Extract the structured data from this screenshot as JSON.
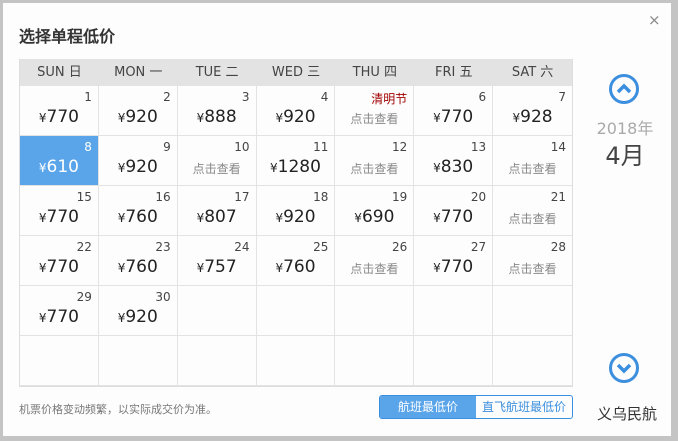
{
  "title": "选择单程低价",
  "close_icon": "×",
  "weekdays": [
    "SUN 日",
    "MON 一",
    "TUE 二",
    "WED 三",
    "THU 四",
    "FRI 五",
    "SAT 六"
  ],
  "currency": "¥",
  "view_label": "点击查看",
  "selected_day": 8,
  "days": [
    {
      "day": "1",
      "price": "770"
    },
    {
      "day": "2",
      "price": "920"
    },
    {
      "day": "3",
      "price": "888"
    },
    {
      "day": "4",
      "price": "920"
    },
    {
      "day": "清明节",
      "holiday": true,
      "price": null
    },
    {
      "day": "6",
      "price": "770"
    },
    {
      "day": "7",
      "price": "928"
    },
    {
      "day": "8",
      "price": "610"
    },
    {
      "day": "9",
      "price": "920"
    },
    {
      "day": "10",
      "price": null
    },
    {
      "day": "11",
      "price": "1280"
    },
    {
      "day": "12",
      "price": null
    },
    {
      "day": "13",
      "price": "830"
    },
    {
      "day": "14",
      "price": null
    },
    {
      "day": "15",
      "price": "770"
    },
    {
      "day": "16",
      "price": "760"
    },
    {
      "day": "17",
      "price": "807"
    },
    {
      "day": "18",
      "price": "920"
    },
    {
      "day": "19",
      "price": "690"
    },
    {
      "day": "20",
      "price": "770"
    },
    {
      "day": "21",
      "price": null
    },
    {
      "day": "22",
      "price": "770"
    },
    {
      "day": "23",
      "price": "760"
    },
    {
      "day": "24",
      "price": "757"
    },
    {
      "day": "25",
      "price": "760"
    },
    {
      "day": "26",
      "price": null
    },
    {
      "day": "27",
      "price": "770"
    },
    {
      "day": "28",
      "price": null
    },
    {
      "day": "29",
      "price": "770"
    },
    {
      "day": "30",
      "price": "920"
    }
  ],
  "year": "2018年",
  "month": "4月",
  "note": "机票价格变动频繁，以实际成交价为准。",
  "toggle": {
    "lowest": "航班最低价",
    "direct": "直飞航班最低价"
  },
  "watermark": "义乌民航",
  "accent": "#5aa4ea"
}
